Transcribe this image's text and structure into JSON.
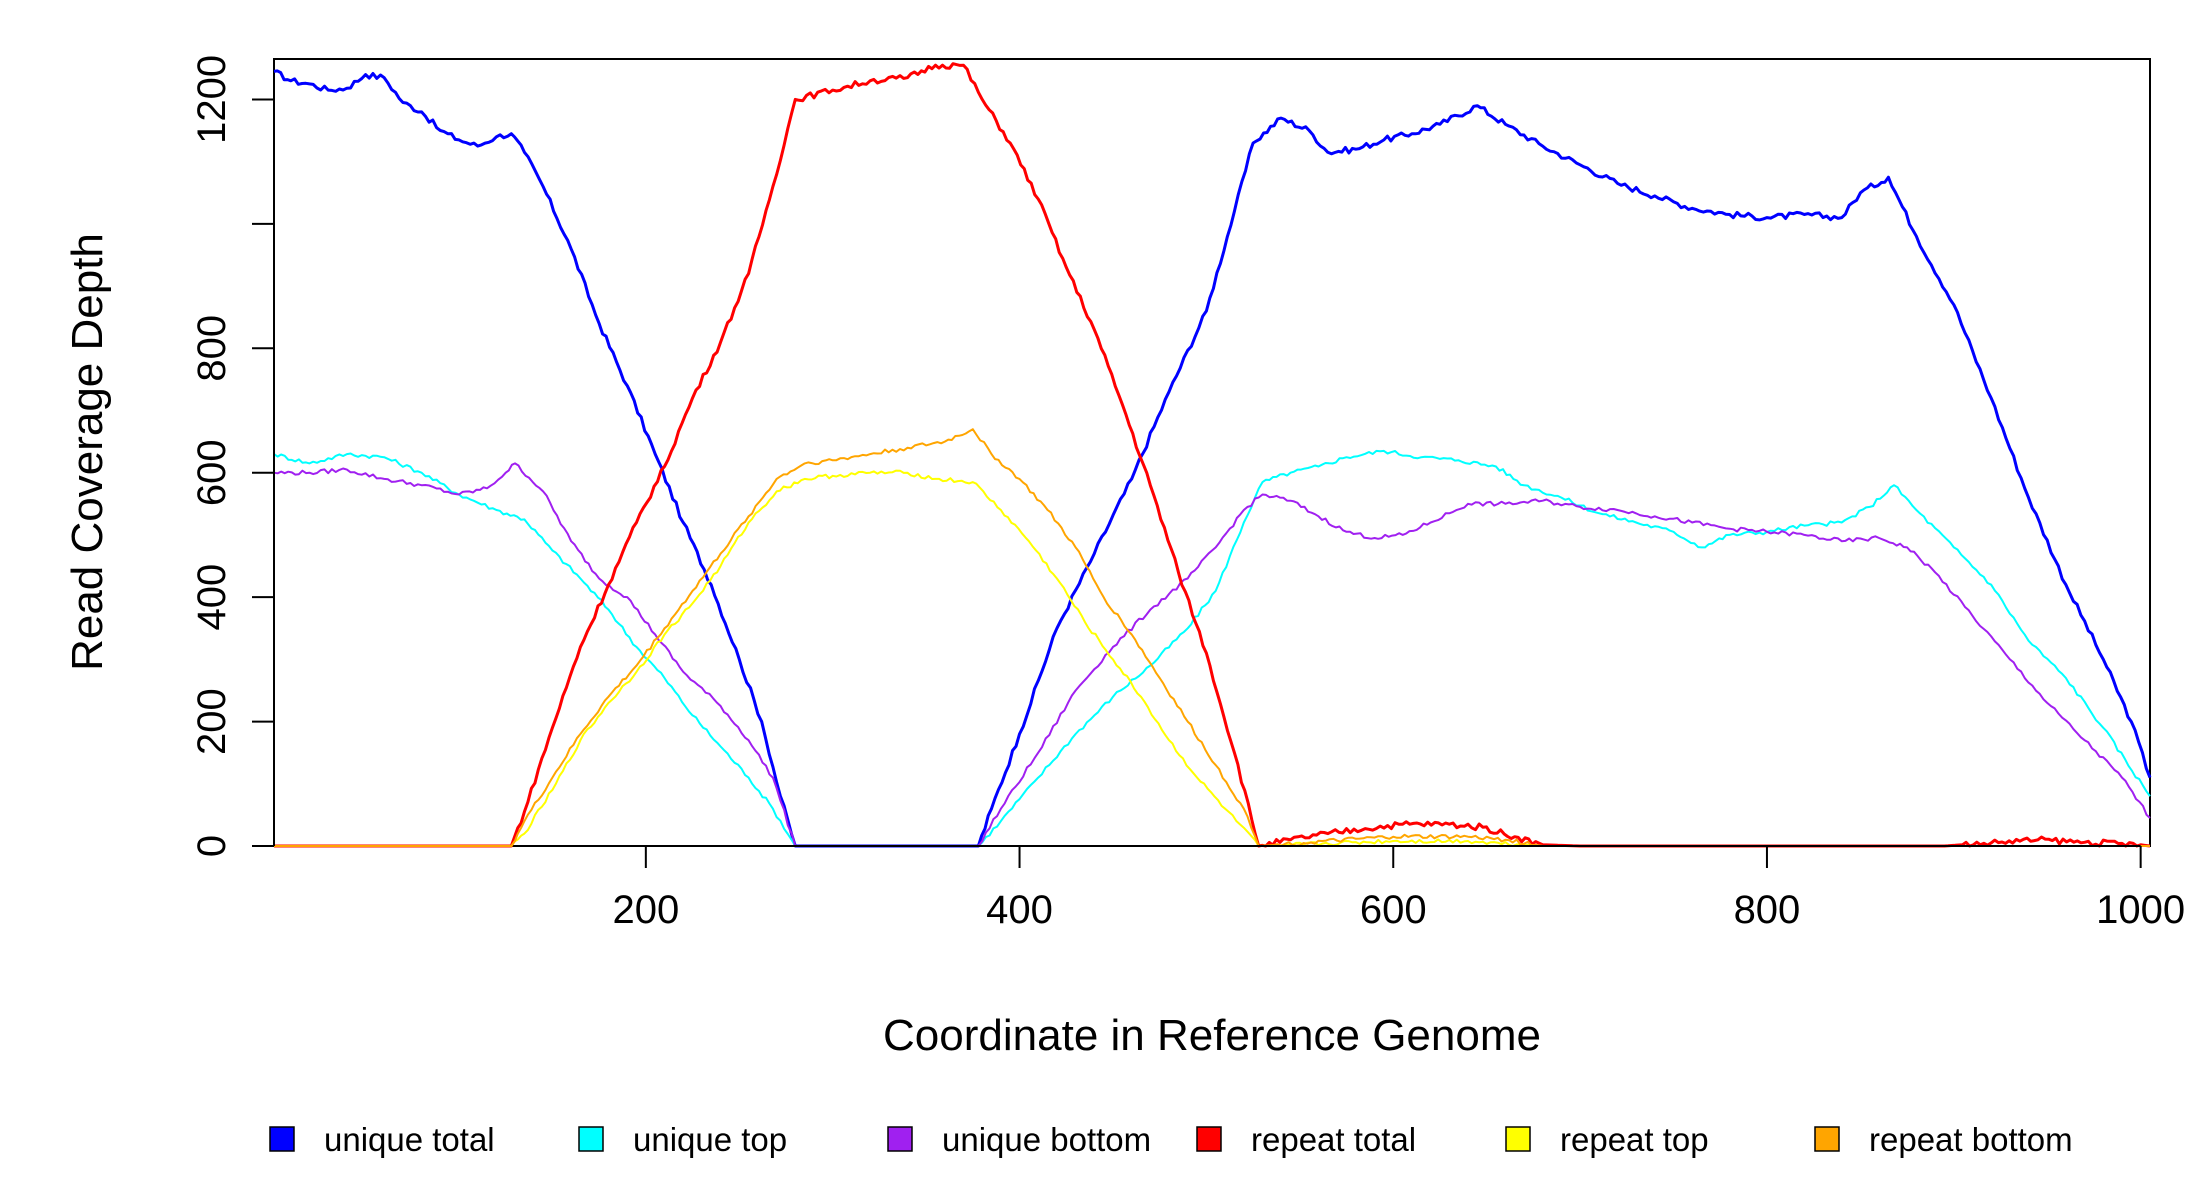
{
  "chart_data": {
    "type": "line",
    "xlabel": "Coordinate in Reference Genome",
    "ylabel": "Read Coverage Depth",
    "xlim": [
      1,
      1005
    ],
    "ylim": [
      0,
      1265
    ],
    "x_ticks": [
      200,
      400,
      600,
      800,
      1000
    ],
    "x_tick_labels": [
      "200",
      "400",
      "600",
      "800",
      "1000"
    ],
    "y_ticks": [
      0,
      200,
      400,
      600,
      800,
      1000,
      1200
    ],
    "y_tick_labels": [
      "0",
      "200",
      "400",
      "600",
      "800",
      "",
      "1200"
    ],
    "legend_position": "bottom",
    "series": [
      {
        "name": "unique total",
        "color": "#0000ff",
        "width": 3,
        "points": [
          [
            1,
            1245
          ],
          [
            10,
            1230
          ],
          [
            20,
            1225
          ],
          [
            30,
            1215
          ],
          [
            40,
            1218
          ],
          [
            50,
            1240
          ],
          [
            60,
            1235
          ],
          [
            70,
            1195
          ],
          [
            80,
            1180
          ],
          [
            90,
            1150
          ],
          [
            100,
            1135
          ],
          [
            110,
            1125
          ],
          [
            120,
            1140
          ],
          [
            128,
            1145
          ],
          [
            135,
            1115
          ],
          [
            145,
            1060
          ],
          [
            160,
            960
          ],
          [
            175,
            840
          ],
          [
            190,
            740
          ],
          [
            205,
            630
          ],
          [
            220,
            520
          ],
          [
            235,
            420
          ],
          [
            250,
            300
          ],
          [
            262,
            200
          ],
          [
            272,
            80
          ],
          [
            280,
            0
          ],
          [
            378,
            0
          ],
          [
            385,
            60
          ],
          [
            400,
            180
          ],
          [
            420,
            350
          ],
          [
            440,
            470
          ],
          [
            460,
            590
          ],
          [
            480,
            730
          ],
          [
            500,
            860
          ],
          [
            515,
            1020
          ],
          [
            525,
            1130
          ],
          [
            540,
            1170
          ],
          [
            555,
            1150
          ],
          [
            565,
            1115
          ],
          [
            580,
            1120
          ],
          [
            595,
            1135
          ],
          [
            610,
            1145
          ],
          [
            625,
            1160
          ],
          [
            645,
            1190
          ],
          [
            660,
            1160
          ],
          [
            680,
            1125
          ],
          [
            700,
            1095
          ],
          [
            720,
            1065
          ],
          [
            740,
            1045
          ],
          [
            760,
            1025
          ],
          [
            780,
            1015
          ],
          [
            800,
            1010
          ],
          [
            820,
            1015
          ],
          [
            840,
            1010
          ],
          [
            850,
            1050
          ],
          [
            865,
            1075
          ],
          [
            880,
            980
          ],
          [
            900,
            870
          ],
          [
            920,
            720
          ],
          [
            940,
            560
          ],
          [
            960,
            420
          ],
          [
            980,
            300
          ],
          [
            995,
            200
          ],
          [
            1005,
            110
          ]
        ]
      },
      {
        "name": "unique top",
        "color": "#00ffff",
        "width": 2,
        "points": [
          [
            1,
            630
          ],
          [
            20,
            615
          ],
          [
            40,
            630
          ],
          [
            60,
            625
          ],
          [
            80,
            600
          ],
          [
            100,
            565
          ],
          [
            120,
            540
          ],
          [
            135,
            525
          ],
          [
            150,
            475
          ],
          [
            165,
            430
          ],
          [
            180,
            380
          ],
          [
            195,
            320
          ],
          [
            210,
            270
          ],
          [
            225,
            210
          ],
          [
            240,
            160
          ],
          [
            255,
            110
          ],
          [
            268,
            60
          ],
          [
            280,
            0
          ],
          [
            378,
            0
          ],
          [
            390,
            40
          ],
          [
            410,
            110
          ],
          [
            430,
            180
          ],
          [
            450,
            240
          ],
          [
            470,
            290
          ],
          [
            490,
            350
          ],
          [
            505,
            410
          ],
          [
            520,
            520
          ],
          [
            530,
            585
          ],
          [
            545,
            600
          ],
          [
            560,
            610
          ],
          [
            575,
            625
          ],
          [
            595,
            635
          ],
          [
            615,
            625
          ],
          [
            635,
            620
          ],
          [
            655,
            610
          ],
          [
            670,
            580
          ],
          [
            690,
            560
          ],
          [
            710,
            535
          ],
          [
            730,
            520
          ],
          [
            750,
            505
          ],
          [
            765,
            480
          ],
          [
            780,
            500
          ],
          [
            800,
            505
          ],
          [
            820,
            515
          ],
          [
            840,
            520
          ],
          [
            855,
            545
          ],
          [
            868,
            580
          ],
          [
            880,
            540
          ],
          [
            900,
            480
          ],
          [
            920,
            420
          ],
          [
            940,
            330
          ],
          [
            960,
            270
          ],
          [
            980,
            190
          ],
          [
            1005,
            80
          ]
        ]
      },
      {
        "name": "unique bottom",
        "color": "#a020f0",
        "width": 2,
        "points": [
          [
            1,
            600
          ],
          [
            20,
            600
          ],
          [
            40,
            605
          ],
          [
            60,
            590
          ],
          [
            80,
            580
          ],
          [
            100,
            565
          ],
          [
            115,
            575
          ],
          [
            125,
            600
          ],
          [
            130,
            615
          ],
          [
            145,
            570
          ],
          [
            160,
            490
          ],
          [
            175,
            430
          ],
          [
            190,
            400
          ],
          [
            205,
            340
          ],
          [
            220,
            280
          ],
          [
            240,
            225
          ],
          [
            255,
            170
          ],
          [
            268,
            110
          ],
          [
            280,
            0
          ],
          [
            378,
            0
          ],
          [
            390,
            60
          ],
          [
            410,
            150
          ],
          [
            430,
            250
          ],
          [
            450,
            320
          ],
          [
            470,
            380
          ],
          [
            490,
            430
          ],
          [
            505,
            480
          ],
          [
            520,
            540
          ],
          [
            530,
            565
          ],
          [
            545,
            555
          ],
          [
            560,
            530
          ],
          [
            575,
            505
          ],
          [
            590,
            495
          ],
          [
            605,
            500
          ],
          [
            620,
            520
          ],
          [
            640,
            550
          ],
          [
            660,
            550
          ],
          [
            680,
            555
          ],
          [
            700,
            545
          ],
          [
            720,
            540
          ],
          [
            740,
            530
          ],
          [
            760,
            520
          ],
          [
            780,
            510
          ],
          [
            800,
            505
          ],
          [
            820,
            500
          ],
          [
            840,
            490
          ],
          [
            860,
            495
          ],
          [
            875,
            480
          ],
          [
            890,
            440
          ],
          [
            910,
            370
          ],
          [
            930,
            300
          ],
          [
            950,
            230
          ],
          [
            970,
            170
          ],
          [
            990,
            110
          ],
          [
            1005,
            45
          ]
        ]
      },
      {
        "name": "repeat total",
        "color": "#ff0000",
        "width": 3,
        "points": [
          [
            1,
            0
          ],
          [
            128,
            0
          ],
          [
            135,
            55
          ],
          [
            150,
            190
          ],
          [
            165,
            320
          ],
          [
            180,
            420
          ],
          [
            195,
            520
          ],
          [
            210,
            610
          ],
          [
            225,
            720
          ],
          [
            240,
            810
          ],
          [
            255,
            920
          ],
          [
            268,
            1060
          ],
          [
            280,
            1200
          ],
          [
            300,
            1215
          ],
          [
            320,
            1230
          ],
          [
            340,
            1235
          ],
          [
            355,
            1255
          ],
          [
            370,
            1255
          ],
          [
            380,
            1200
          ],
          [
            395,
            1130
          ],
          [
            410,
            1040
          ],
          [
            425,
            930
          ],
          [
            440,
            830
          ],
          [
            455,
            710
          ],
          [
            470,
            580
          ],
          [
            485,
            440
          ],
          [
            500,
            310
          ],
          [
            515,
            150
          ],
          [
            528,
            0
          ],
          [
            545,
            10
          ],
          [
            565,
            20
          ],
          [
            585,
            28
          ],
          [
            605,
            35
          ],
          [
            630,
            35
          ],
          [
            648,
            30
          ],
          [
            665,
            15
          ],
          [
            680,
            2
          ],
          [
            700,
            0
          ],
          [
            895,
            0
          ],
          [
            920,
            5
          ],
          [
            945,
            10
          ],
          [
            970,
            6
          ],
          [
            1000,
            2
          ],
          [
            1005,
            0
          ]
        ]
      },
      {
        "name": "repeat top",
        "color": "#ffff00",
        "width": 2,
        "points": [
          [
            1,
            0
          ],
          [
            128,
            0
          ],
          [
            135,
            20
          ],
          [
            150,
            90
          ],
          [
            165,
            170
          ],
          [
            180,
            230
          ],
          [
            195,
            280
          ],
          [
            210,
            340
          ],
          [
            225,
            390
          ],
          [
            240,
            450
          ],
          [
            255,
            520
          ],
          [
            270,
            570
          ],
          [
            285,
            590
          ],
          [
            300,
            595
          ],
          [
            320,
            600
          ],
          [
            340,
            600
          ],
          [
            355,
            590
          ],
          [
            375,
            585
          ],
          [
            390,
            540
          ],
          [
            405,
            490
          ],
          [
            420,
            430
          ],
          [
            435,
            360
          ],
          [
            450,
            300
          ],
          [
            465,
            240
          ],
          [
            480,
            170
          ],
          [
            495,
            110
          ],
          [
            510,
            60
          ],
          [
            528,
            0
          ],
          [
            600,
            8
          ],
          [
            640,
            8
          ],
          [
            680,
            0
          ],
          [
            1005,
            0
          ]
        ]
      },
      {
        "name": "repeat bottom",
        "color": "#ffa500",
        "width": 2,
        "points": [
          [
            1,
            0
          ],
          [
            128,
            0
          ],
          [
            135,
            40
          ],
          [
            150,
            110
          ],
          [
            165,
            180
          ],
          [
            180,
            240
          ],
          [
            195,
            290
          ],
          [
            210,
            350
          ],
          [
            225,
            410
          ],
          [
            240,
            470
          ],
          [
            255,
            530
          ],
          [
            270,
            590
          ],
          [
            285,
            615
          ],
          [
            300,
            620
          ],
          [
            320,
            630
          ],
          [
            340,
            640
          ],
          [
            360,
            650
          ],
          [
            375,
            670
          ],
          [
            385,
            630
          ],
          [
            400,
            590
          ],
          [
            415,
            540
          ],
          [
            430,
            480
          ],
          [
            445,
            400
          ],
          [
            460,
            340
          ],
          [
            475,
            270
          ],
          [
            490,
            200
          ],
          [
            505,
            130
          ],
          [
            520,
            60
          ],
          [
            528,
            0
          ],
          [
            600,
            15
          ],
          [
            640,
            15
          ],
          [
            660,
            10
          ],
          [
            680,
            0
          ],
          [
            1005,
            0
          ]
        ]
      }
    ]
  }
}
